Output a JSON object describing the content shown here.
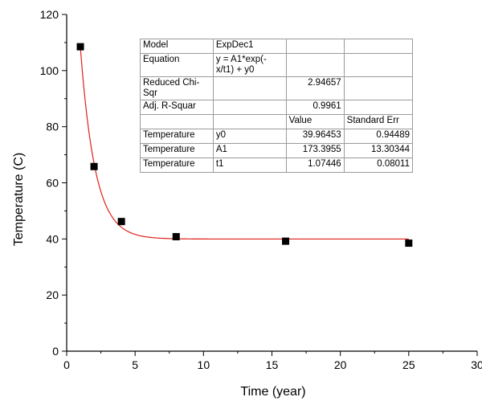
{
  "chart_data": {
    "type": "scatter",
    "xlabel": "Time (year)",
    "ylabel": "Temperature (C)",
    "xlim": [
      0,
      30
    ],
    "ylim": [
      0,
      120
    ],
    "xticks": [
      0,
      5,
      10,
      15,
      20,
      25,
      30
    ],
    "yticks": [
      0,
      20,
      40,
      60,
      80,
      100,
      120
    ],
    "grid": false,
    "series": [
      {
        "x": [
          1,
          2,
          4,
          8,
          16,
          25
        ],
        "y": [
          108.5,
          65.8,
          46.2,
          40.8,
          39.2,
          38.5
        ],
        "marker": "square",
        "color": "#000000"
      }
    ],
    "fit": {
      "model": "ExpDec1",
      "equation": "y = A1*exp(-x/t1) + y0",
      "params": {
        "y0": 39.96453,
        "A1": 173.3955,
        "t1": 1.07446
      },
      "color": "#e0201b"
    }
  },
  "stats_table": {
    "rows": [
      [
        "Model",
        "ExpDec1",
        "",
        ""
      ],
      [
        "Equation",
        "y = A1*exp(-x/t1) + y0",
        "",
        ""
      ],
      [
        "Reduced Chi-Sqr",
        "",
        "2.94657",
        ""
      ],
      [
        "Adj. R-Squar",
        "",
        "0.9961",
        ""
      ],
      [
        "",
        "",
        "Value",
        "Standard Err"
      ],
      [
        "Temperature",
        "y0",
        "39.96453",
        "0.94489"
      ],
      [
        "Temperature",
        "A1",
        "173.3955",
        "13.30344"
      ],
      [
        "Temperature",
        "t1",
        "1.07446",
        "0.08011"
      ]
    ]
  }
}
